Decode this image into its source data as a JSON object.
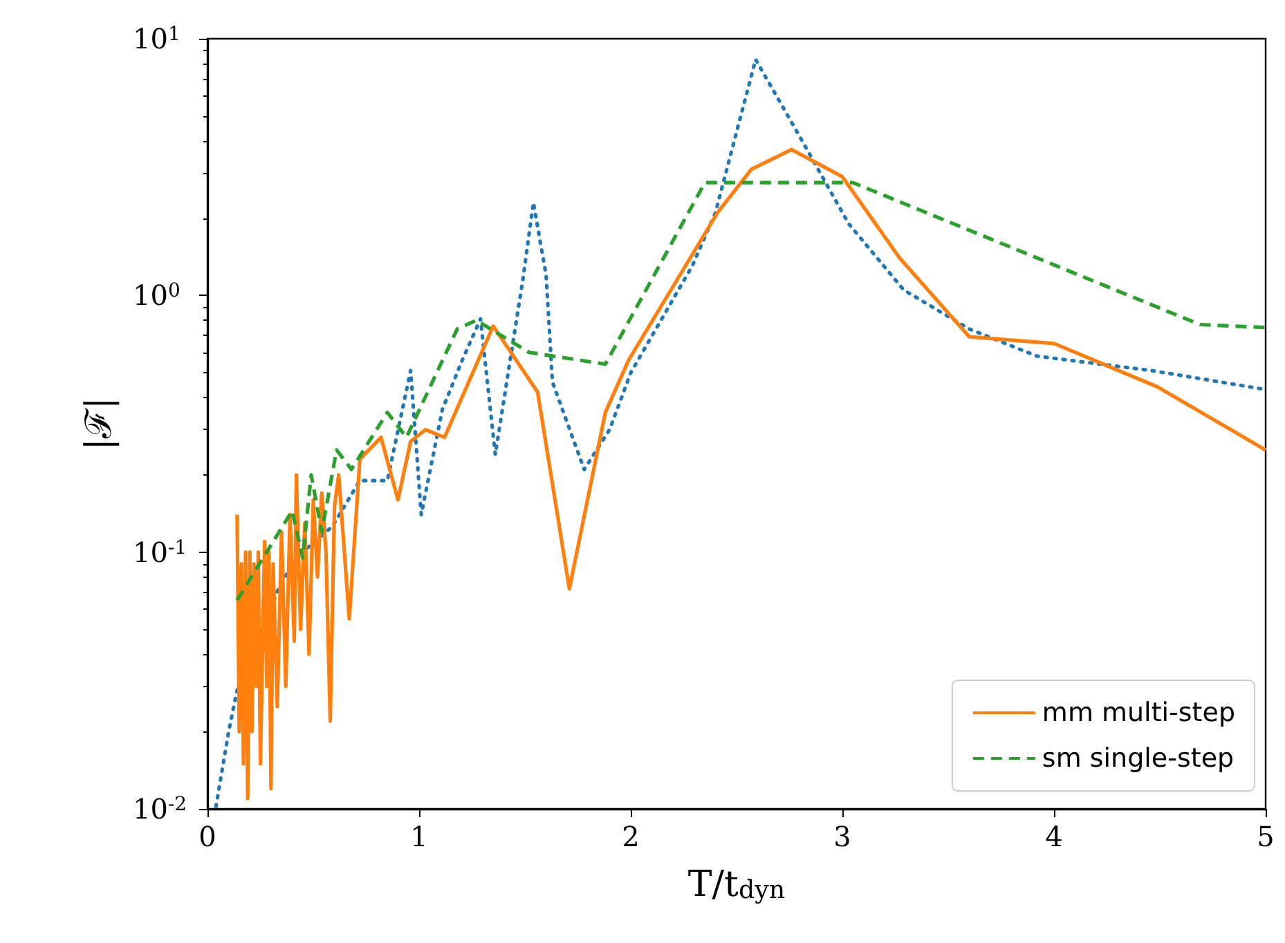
{
  "chart_data": {
    "type": "line",
    "xlabel": "T/t$_{dyn}$",
    "ylabel": "|ℱ|",
    "xlim": [
      0,
      5
    ],
    "xticks": [
      0,
      1,
      2,
      3,
      4,
      5
    ],
    "ylim": [
      0.01,
      10
    ],
    "yticks": [
      {
        "value": 0.01,
        "label": "10$^{-2}$"
      },
      {
        "value": 0.1,
        "label": "10$^{-1}$"
      },
      {
        "value": 1,
        "label": "10$^{0}$"
      },
      {
        "value": 10,
        "label": "10$^{1}$"
      }
    ],
    "log": "y",
    "grid": false,
    "legend": "bottom right",
    "marker": "none",
    "series": [
      {
        "color": "#1f77b4",
        "line_style": "dotted",
        "x": [
          0.04,
          0.1,
          0.14,
          0.35,
          0.45,
          0.59,
          0.72,
          0.85,
          0.96,
          1.01,
          1.11,
          1.2,
          1.29,
          1.36,
          1.49,
          1.54,
          1.6,
          1.63,
          1.78,
          1.9,
          2.0,
          2.29,
          2.4,
          2.59,
          2.81,
          3.03,
          3.29,
          3.6,
          3.92,
          4.46,
          5.0
        ],
        "values": [
          0.0102,
          0.02,
          0.029,
          0.077,
          0.1,
          0.126,
          0.19,
          0.19,
          0.51,
          0.14,
          0.36,
          0.55,
          0.81,
          0.24,
          1.15,
          2.3,
          1.2,
          0.46,
          0.21,
          0.3,
          0.5,
          1.3,
          2.1,
          8.3,
          4.0,
          1.9,
          1.05,
          0.74,
          0.58,
          0.51,
          0.43
        ]
      },
      {
        "name": "mm multi-step",
        "color": "#ff7f0e",
        "line_style": "solid",
        "x": [
          0.14,
          0.15,
          0.16,
          0.17,
          0.18,
          0.19,
          0.2,
          0.21,
          0.22,
          0.23,
          0.24,
          0.25,
          0.27,
          0.28,
          0.29,
          0.3,
          0.31,
          0.33,
          0.35,
          0.37,
          0.39,
          0.41,
          0.42,
          0.44,
          0.46,
          0.48,
          0.5,
          0.52,
          0.54,
          0.56,
          0.58,
          0.6,
          0.62,
          0.67,
          0.72,
          0.82,
          0.9,
          0.96,
          1.03,
          1.12,
          1.35,
          1.56,
          1.71,
          1.88,
          1.99,
          2.41,
          2.57,
          2.76,
          3.0,
          3.27,
          3.6,
          4.0,
          4.49,
          5.0
        ],
        "values": [
          0.14,
          0.02,
          0.09,
          0.015,
          0.1,
          0.011,
          0.1,
          0.02,
          0.09,
          0.03,
          0.1,
          0.015,
          0.11,
          0.03,
          0.1,
          0.012,
          0.09,
          0.025,
          0.12,
          0.03,
          0.14,
          0.045,
          0.2,
          0.05,
          0.13,
          0.04,
          0.16,
          0.08,
          0.17,
          0.1,
          0.022,
          0.15,
          0.2,
          0.055,
          0.23,
          0.28,
          0.16,
          0.27,
          0.3,
          0.28,
          0.76,
          0.42,
          0.072,
          0.35,
          0.56,
          2.1,
          3.1,
          3.7,
          2.9,
          1.4,
          0.69,
          0.65,
          0.44,
          0.25
        ]
      },
      {
        "name": "sm single-step",
        "color": "#2ca02c",
        "line_style": "dashed",
        "x": [
          0.14,
          0.4,
          0.45,
          0.49,
          0.54,
          0.61,
          0.68,
          0.85,
          0.94,
          1.18,
          1.27,
          1.52,
          1.88,
          2.35,
          3.05,
          4.69,
          5.0
        ],
        "values": [
          0.065,
          0.145,
          0.095,
          0.2,
          0.12,
          0.25,
          0.21,
          0.35,
          0.28,
          0.74,
          0.8,
          0.6,
          0.54,
          2.75,
          2.75,
          0.77,
          0.75
        ]
      }
    ]
  }
}
